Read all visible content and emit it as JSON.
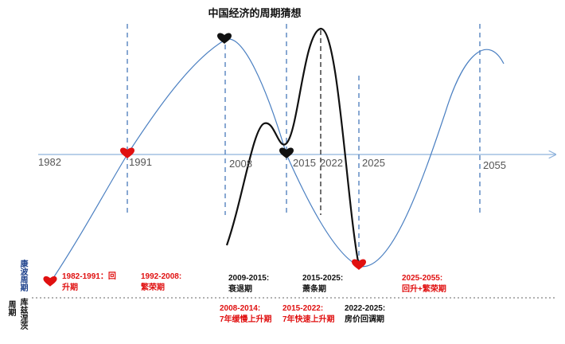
{
  "title": "中国经济的周期猜想",
  "colors": {
    "curve": "#4a7fc1",
    "axis": "#8fb3dc",
    "dash": "#3a6fb5",
    "red": "#e01010",
    "black": "#111111"
  },
  "years": [
    "1982",
    "1991",
    "2008",
    "2015",
    "2022",
    "2025",
    "2055"
  ],
  "upper_side_label": "康波周期",
  "lower_side_label_a": "周期",
  "lower_side_label_b": "库兹涅茨",
  "kondratiev_phases": [
    {
      "text": "1982-1991：回\n升期",
      "color": "red"
    },
    {
      "text": "1992-2008:\n繁荣期",
      "color": "red"
    },
    {
      "text": "2009-2015:\n衰退期",
      "color": "black"
    },
    {
      "text": "2015-2025:\n萧条期",
      "color": "black"
    },
    {
      "text": "2025-2055:\n回升+繁荣期",
      "color": "red"
    }
  ],
  "kuznets_phases": [
    {
      "text": "2008-2014:\n7年缓慢上升期",
      "color": "red"
    },
    {
      "text": "2015-2022:\n7年快速上升期",
      "color": "red"
    },
    {
      "text": "2022-2025:\n房价回调期",
      "color": "black"
    }
  ],
  "markers": [
    {
      "name": "heart-1982",
      "color": "red"
    },
    {
      "name": "heart-1991",
      "color": "red"
    },
    {
      "name": "heart-2008-peak",
      "color": "black"
    },
    {
      "name": "heart-2015",
      "color": "black"
    },
    {
      "name": "heart-2025-trough",
      "color": "red"
    }
  ]
}
